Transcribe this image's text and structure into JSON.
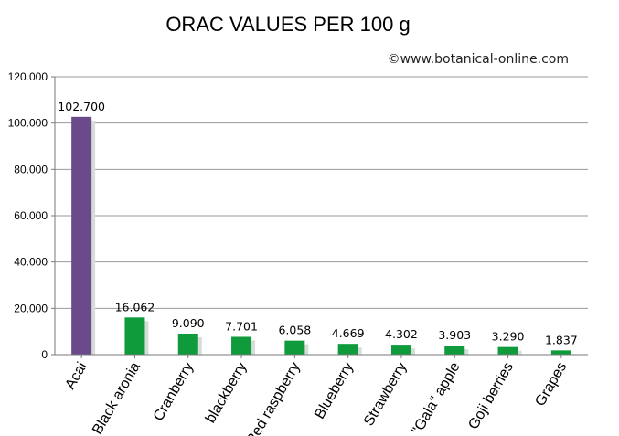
{
  "title": "ORAC VALUES PER 100 g",
  "credit": "©www.botanical-online.com",
  "colors": {
    "highlight": "#6a4a8a",
    "bar": "#0f9a3c",
    "bar_shadow": "#d6dcd6"
  },
  "chart_data": {
    "type": "bar",
    "title": "ORAC VALUES PER 100 g",
    "xlabel": "",
    "ylabel": "",
    "ylim": [
      0,
      120000
    ],
    "yticks": [
      0,
      20000,
      40000,
      60000,
      80000,
      100000,
      120000
    ],
    "ytick_labels": [
      "0",
      "20.000",
      "40.000",
      "60.000",
      "80.000",
      "100.000",
      "120.000"
    ],
    "grid": true,
    "categories": [
      "Acai",
      "Black aronia",
      "Cranberry",
      "blackberry",
      "Red raspberry",
      "Blueberry",
      "Strawberry",
      "\"Gala\" apple",
      "Goji berries",
      "Grapes"
    ],
    "values": [
      102700,
      16062,
      9090,
      7701,
      6058,
      4669,
      4302,
      3903,
      3290,
      1837
    ],
    "value_labels": [
      "102.700",
      "16.062",
      "9.090",
      "7.701",
      "6.058",
      "4.669",
      "4.302",
      "3.903",
      "3.290",
      "1.837"
    ],
    "bar_colors": [
      "#6a4a8a",
      "#0f9a3c",
      "#0f9a3c",
      "#0f9a3c",
      "#0f9a3c",
      "#0f9a3c",
      "#0f9a3c",
      "#0f9a3c",
      "#0f9a3c",
      "#0f9a3c"
    ]
  }
}
